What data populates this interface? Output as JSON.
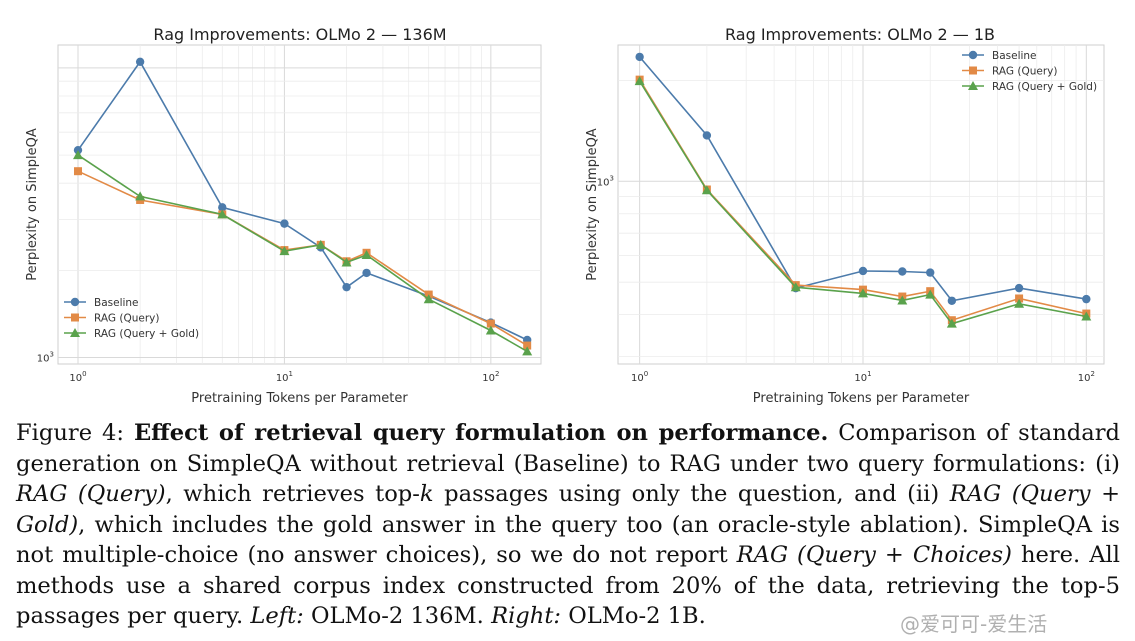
{
  "chart_data": [
    {
      "type": "line",
      "title": "Rag Improvements: OLMo 2 — 136M",
      "xlabel": "Pretraining Tokens per Parameter",
      "ylabel": "Perplexity on SimpleQA",
      "xscale": "log",
      "yscale": "log",
      "xlim": [
        0.8,
        175
      ],
      "ylim": [
        950,
        12000
      ],
      "xticks": [
        {
          "value": 1,
          "label": "10^0"
        },
        {
          "value": 10,
          "label": "10^1"
        },
        {
          "value": 100,
          "label": "10^2"
        }
      ],
      "yticks": [
        {
          "value": 1000,
          "label": "10^3"
        }
      ],
      "legend_position": "bottom-left",
      "series": [
        {
          "name": "Baseline",
          "color": "#4c7bab",
          "marker": "circle",
          "x": [
            1,
            2,
            5,
            10,
            15,
            20,
            25,
            50,
            100,
            150
          ],
          "y": [
            5200,
            10500,
            3300,
            2900,
            2400,
            1750,
            1960,
            1630,
            1320,
            1150
          ]
        },
        {
          "name": "RAG (Query)",
          "color": "#e28a46",
          "marker": "square",
          "x": [
            1,
            2,
            5,
            10,
            15,
            20,
            25,
            50,
            100,
            150
          ],
          "y": [
            4400,
            3500,
            3120,
            2350,
            2450,
            2150,
            2300,
            1650,
            1310,
            1100
          ]
        },
        {
          "name": "RAG (Query + Gold)",
          "color": "#5aa24c",
          "marker": "triangle",
          "x": [
            1,
            2,
            5,
            10,
            15,
            20,
            25,
            50,
            100,
            150
          ],
          "y": [
            5000,
            3600,
            3120,
            2330,
            2450,
            2130,
            2260,
            1590,
            1240,
            1050
          ]
        }
      ]
    },
    {
      "type": "line",
      "title": "Rag Improvements: OLMo 2 — 1B",
      "xlabel": "Pretraining Tokens per Parameter",
      "ylabel": "Perplexity on SimpleQA",
      "xscale": "log",
      "yscale": "log",
      "xlim": [
        0.8,
        120
      ],
      "ylim": [
        285,
        2550
      ],
      "xticks": [
        {
          "value": 1,
          "label": "10^0"
        },
        {
          "value": 10,
          "label": "10^1"
        },
        {
          "value": 100,
          "label": "10^2"
        }
      ],
      "yticks": [
        {
          "value": 1000,
          "label": "10^3"
        }
      ],
      "legend_position": "top-right",
      "series": [
        {
          "name": "Baseline",
          "color": "#4c7bab",
          "marker": "circle",
          "x": [
            1,
            2,
            5,
            10,
            15,
            20,
            25,
            50,
            100
          ],
          "y": [
            2350,
            1370,
            480,
            540,
            538,
            534,
            440,
            480,
            445
          ]
        },
        {
          "name": "RAG (Query)",
          "color": "#e28a46",
          "marker": "square",
          "x": [
            1,
            2,
            5,
            10,
            15,
            20,
            25,
            50,
            100
          ],
          "y": [
            2010,
            945,
            490,
            475,
            453,
            470,
            385,
            447,
            403
          ]
        },
        {
          "name": "RAG (Query + Gold)",
          "color": "#5aa24c",
          "marker": "triangle",
          "x": [
            1,
            2,
            5,
            10,
            15,
            20,
            25,
            50,
            100
          ],
          "y": [
            1990,
            940,
            483,
            463,
            441,
            459,
            376,
            431,
            395
          ]
        }
      ]
    }
  ],
  "caption": {
    "figure_label": "Figure 4:",
    "bold_title": "Effect of retrieval query formulation on performance.",
    "t1": "Comparison of standard generation on SimpleQA without retrieval (Baseline) to RAG under two query formulations: (i)",
    "i1": "RAG (Query)",
    "t2": ", which retrieves top-",
    "i2": "k",
    "t3": "passages using only the question, and (ii)",
    "i3": "RAG (Query + Gold)",
    "t4": ", which includes the gold answer in the query too (an oracle-style ablation). SimpleQA is not multiple-choice (no answer choices), so we do not report",
    "i4": "RAG (Query + Choices)",
    "t5": "here.  All methods use a shared corpus index constructed from 20% of the data, retrieving the top-5 passages per query.",
    "i5": "Left:",
    "t6": "OLMo-2 136M.",
    "i6": "Right:",
    "t7": "OLMo-2 1B."
  },
  "watermark": "@爱可可-爱生活"
}
